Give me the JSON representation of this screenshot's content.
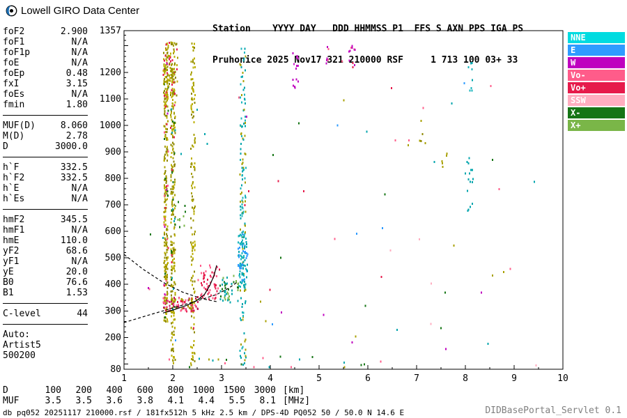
{
  "header": {
    "logo_text": "Lowell GIRO Data Center",
    "station_line1": "Station    YYYY DAY   DDD HHMMSS P1  FFS S AXN PPS IGA PS",
    "station_line2": "Pruhonice 2025 Nov17 321 210000 RSF     1 713 100 03+ 33"
  },
  "params": {
    "groups": [
      {
        "rows": [
          [
            "foF2",
            "2.900"
          ],
          [
            "foF1",
            "N/A"
          ],
          [
            "foF1p",
            "N/A"
          ],
          [
            "foE",
            "N/A"
          ],
          [
            "foEp",
            "0.48"
          ],
          [
            "fxI",
            "3.15"
          ],
          [
            "foEs",
            "N/A"
          ],
          [
            "fmin",
            "1.80"
          ]
        ]
      },
      {
        "rows": [
          [
            "MUF(D)",
            "8.060"
          ],
          [
            "M(D)",
            "2.78"
          ],
          [
            "D",
            "3000.0"
          ]
        ]
      },
      {
        "rows": [
          [
            "h`F",
            "332.5"
          ],
          [
            "h`F2",
            "332.5"
          ],
          [
            "h`E",
            "N/A"
          ],
          [
            "h`Es",
            "N/A"
          ]
        ]
      },
      {
        "rows": [
          [
            "hmF2",
            "345.5"
          ],
          [
            "hmF1",
            "N/A"
          ],
          [
            "hmE",
            "110.0"
          ],
          [
            "yF2",
            "68.6"
          ],
          [
            "yF1",
            "N/A"
          ],
          [
            "yE",
            "20.0"
          ],
          [
            "B0",
            "76.6"
          ],
          [
            "B1",
            "1.53"
          ]
        ]
      },
      {
        "rows": [
          [
            "C-level",
            "44"
          ]
        ]
      }
    ],
    "auto_label": "Auto:",
    "auto_lines": [
      "Artist5",
      "500200"
    ]
  },
  "chart_data": {
    "type": "scatter",
    "title": "Pruhonice ionogram 2025 Nov17 321 210000",
    "xlabel": "[MHz]",
    "ylabel": "[km]",
    "xlim": [
      1,
      10
    ],
    "ylim": [
      80,
      1357
    ],
    "x_ticks": [
      1,
      2,
      3,
      4,
      5,
      6,
      7,
      8,
      9,
      10
    ],
    "y_tick_labels": [
      1357,
      1200,
      1100,
      1000,
      900,
      800,
      700,
      600,
      500,
      400,
      300,
      200,
      80
    ],
    "grid": false,
    "legend_position": "right-outside",
    "legend": [
      {
        "label": "NNE",
        "color": "#00dbe0"
      },
      {
        "label": "E",
        "color": "#2e9bff"
      },
      {
        "label": "W",
        "color": "#bf00bf"
      },
      {
        "label": "Vo-",
        "color": "#ff5c8a"
      },
      {
        "label": "Vo+",
        "color": "#e61b4b"
      },
      {
        "label": "SSW",
        "color": "#ffaec0"
      },
      {
        "label": "X-",
        "color": "#157515"
      },
      {
        "label": "X+",
        "color": "#7ab648"
      }
    ],
    "clusters": [
      {
        "name": "stripe-1.86",
        "f": [
          1.82,
          1.9
        ],
        "h": [
          255,
          1315
        ],
        "count": 240,
        "seed": 11,
        "colors": [
          "#a8a000",
          "#8f8800",
          "#bdb000"
        ]
      },
      {
        "name": "stripe-1.86-mix",
        "f": [
          1.82,
          1.91
        ],
        "h": [
          270,
          1250
        ],
        "count": 36,
        "seed": 12,
        "colors": [
          "#e61b4b",
          "#157515",
          "#ff5c8a",
          "#bf00bf"
        ]
      },
      {
        "name": "stripe-2.0",
        "f": [
          1.96,
          2.05
        ],
        "h": [
          90,
          1315
        ],
        "count": 250,
        "seed": 13,
        "colors": [
          "#a8a000",
          "#8f8800",
          "#bdb000"
        ]
      },
      {
        "name": "stripe-2.0-mix",
        "f": [
          1.96,
          2.05
        ],
        "h": [
          250,
          1250
        ],
        "count": 32,
        "seed": 14,
        "colors": [
          "#e61b4b",
          "#157515",
          "#00a5ad"
        ]
      },
      {
        "name": "top-blob-2.0",
        "f": [
          1.8,
          2.1
        ],
        "h": [
          1100,
          1320
        ],
        "count": 90,
        "seed": 15,
        "colors": [
          "#a8a000",
          "#bdb000",
          "#8f8800",
          "#e61b4b"
        ]
      },
      {
        "name": "stripe-2.4",
        "f": [
          2.37,
          2.46
        ],
        "h": [
          90,
          1315
        ],
        "count": 150,
        "seed": 16,
        "colors": [
          "#a8a000",
          "#bdb000",
          "#8f8800"
        ]
      },
      {
        "name": "stripe-3.43",
        "f": [
          3.38,
          3.5
        ],
        "h": [
          90,
          1315
        ],
        "count": 150,
        "seed": 17,
        "colors": [
          "#00a5ad",
          "#19b5bd",
          "#a8a000"
        ]
      },
      {
        "name": "xtrace-blob",
        "f": [
          3.34,
          3.54
        ],
        "h": [
          390,
          590
        ],
        "count": 90,
        "seed": 18,
        "colors": [
          "#00a5ad",
          "#2e9bff",
          "#19b5bd"
        ]
      },
      {
        "name": "otrace-flat",
        "f": [
          1.8,
          2.52
        ],
        "h": [
          298,
          350
        ],
        "count": 85,
        "seed": 19,
        "colors": [
          "#e61b4b",
          "#ff5c8a",
          "#a8a000",
          "#c2185b"
        ]
      },
      {
        "name": "otrace-rise",
        "f": [
          2.5,
          2.93
        ],
        "h": [
          338,
          472
        ],
        "count": 55,
        "seed": 20,
        "colors": [
          "#e61b4b",
          "#ff5c8a"
        ]
      },
      {
        "name": "xtrace-low",
        "f": [
          2.95,
          3.36
        ],
        "h": [
          330,
          432
        ],
        "count": 45,
        "seed": 21,
        "colors": [
          "#00a5ad",
          "#157515",
          "#7ab648"
        ]
      },
      {
        "name": "spread-4.5",
        "f": [
          4.46,
          4.58
        ],
        "h": [
          1140,
          1290
        ],
        "count": 14,
        "seed": 22,
        "colors": [
          "#bf00bf",
          "#cc22cc"
        ]
      },
      {
        "name": "spread-5.2",
        "f": [
          5.14,
          5.26
        ],
        "h": [
          1230,
          1300
        ],
        "count": 6,
        "seed": 23,
        "colors": [
          "#ff5c8a",
          "#bf00bf"
        ]
      },
      {
        "name": "spread-5.7",
        "f": [
          5.6,
          5.75
        ],
        "h": [
          1170,
          1300
        ],
        "count": 12,
        "seed": 24,
        "colors": [
          "#bf00bf",
          "#ff5c8a",
          "#e61b4b"
        ]
      },
      {
        "name": "cyan-8.1-mid",
        "f": [
          8.0,
          8.16
        ],
        "h": [
          660,
          890
        ],
        "count": 16,
        "seed": 25,
        "colors": [
          "#00a5ad"
        ]
      },
      {
        "name": "cyan-8.1-top",
        "f": [
          8.0,
          8.16
        ],
        "h": [
          1130,
          1270
        ],
        "count": 8,
        "seed": 26,
        "colors": [
          "#00a5ad",
          "#19b5bd"
        ]
      },
      {
        "name": "specks-7.1",
        "f": [
          7.05,
          7.2
        ],
        "h": [
          930,
          1030
        ],
        "count": 5,
        "seed": 27,
        "colors": [
          "#a8a000",
          "#8f8800"
        ]
      },
      {
        "name": "specks-7.6",
        "f": [
          7.52,
          7.66
        ],
        "h": [
          810,
          900
        ],
        "count": 5,
        "seed": 28,
        "colors": [
          "#a8a000"
        ]
      },
      {
        "name": "green-2.1-mid",
        "f": [
          2.05,
          2.28
        ],
        "h": [
          600,
          720
        ],
        "count": 10,
        "seed": 29,
        "colors": [
          "#157515",
          "#7ab648"
        ]
      },
      {
        "name": "noise",
        "f": [
          1.15,
          9.85
        ],
        "h": [
          85,
          1310
        ],
        "count": 65,
        "seed": 30,
        "colors": [
          "#a8a000",
          "#bf00bf",
          "#00a5ad",
          "#e61b4b",
          "#157515",
          "#ff5c8a",
          "#2e9bff",
          "#ffaec0"
        ]
      },
      {
        "name": "bottom-specks",
        "f": [
          1.9,
          6.5
        ],
        "h": [
          82,
          128
        ],
        "count": 22,
        "seed": 31,
        "colors": [
          "#a8a000",
          "#00a5ad",
          "#ff5c8a",
          "#157515"
        ]
      }
    ],
    "lines": [
      {
        "name": "profile",
        "style": "solid",
        "color": "#000000",
        "points": [
          [
            1.8,
            292
          ],
          [
            2.05,
            306
          ],
          [
            2.3,
            322
          ],
          [
            2.5,
            340
          ],
          [
            2.65,
            362
          ],
          [
            2.76,
            396
          ],
          [
            2.85,
            436
          ],
          [
            2.9,
            472
          ]
        ]
      },
      {
        "name": "dashed-down",
        "style": "dashed",
        "color": "#000000",
        "points": [
          [
            1.0,
            513
          ],
          [
            1.4,
            456
          ],
          [
            1.8,
            408
          ],
          [
            2.2,
            371
          ],
          [
            2.6,
            346
          ],
          [
            2.9,
            335
          ]
        ]
      },
      {
        "name": "dashed-up",
        "style": "dashed",
        "color": "#000000",
        "points": [
          [
            1.0,
            256
          ],
          [
            1.5,
            284
          ],
          [
            2.0,
            311
          ],
          [
            2.5,
            338
          ],
          [
            2.9,
            362
          ],
          [
            3.15,
            386
          ],
          [
            3.32,
            408
          ]
        ]
      }
    ]
  },
  "muf_table": {
    "rows": [
      {
        "label": "D",
        "values": [
          "100",
          "200",
          "400",
          "600",
          "800",
          "1000",
          "1500",
          "3000"
        ],
        "unit": "[km]"
      },
      {
        "label": "MUF",
        "values": [
          "3.5",
          "3.5",
          "3.6",
          "3.8",
          "4.1",
          "4.4",
          "5.5",
          "8.1"
        ],
        "unit": "[MHz]"
      }
    ]
  },
  "footer": {
    "left": "db pq052 20251117 210000.rsf / 181fx512h 5 kHz 2.5 km / DPS-4D PQ052 50 / 50.0 N 14.6 E",
    "right": "DIDBasePortal_Servlet 0.1"
  }
}
